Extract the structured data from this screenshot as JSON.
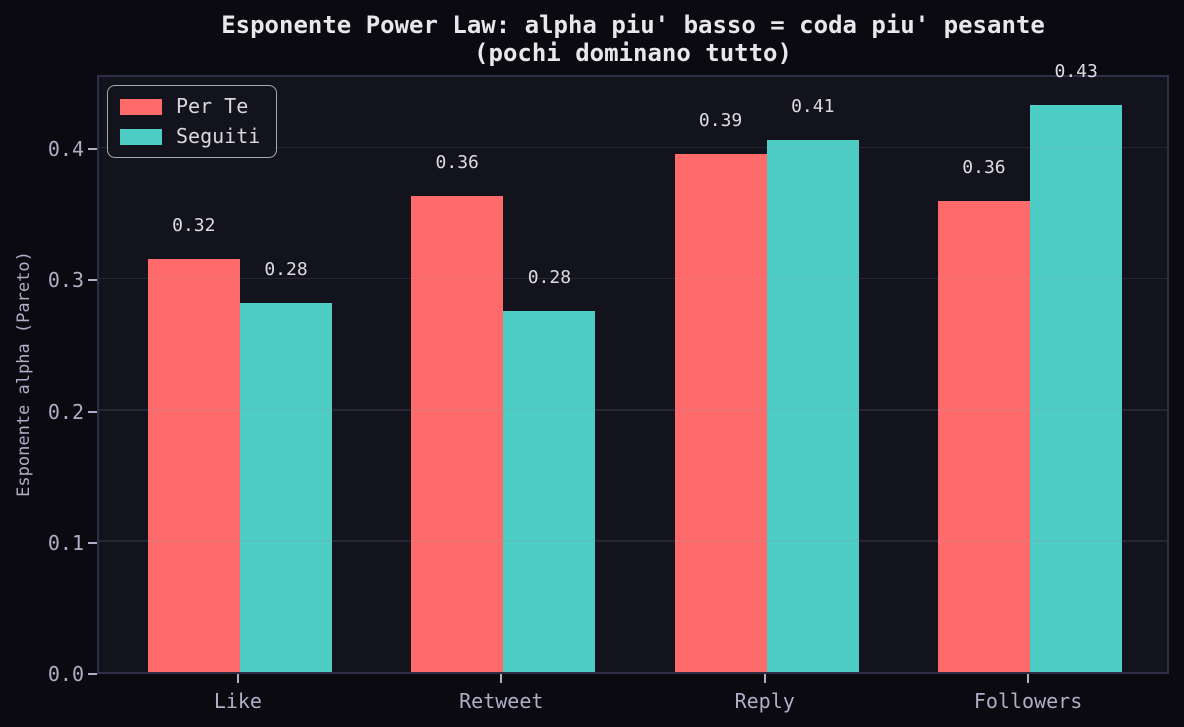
{
  "chart_data": {
    "type": "bar",
    "title_line1": "Esponente Power Law: alpha piu' basso = coda piu' pesante",
    "title_line2": "(pochi dominano tutto)",
    "ylabel": "Esponente alpha (Pareto)",
    "categories": [
      "Like",
      "Retweet",
      "Reply",
      "Followers"
    ],
    "series": [
      {
        "name": "Per Te",
        "color": "#ff6b6b",
        "values": [
          0.315,
          0.363,
          0.395,
          0.359
        ],
        "labels": [
          "0.32",
          "0.36",
          "0.39",
          "0.36"
        ]
      },
      {
        "name": "Seguiti",
        "color": "#4ecdc4",
        "values": [
          0.281,
          0.275,
          0.405,
          0.432
        ],
        "labels": [
          "0.28",
          "0.28",
          "0.41",
          "0.43"
        ]
      }
    ],
    "yticks": [
      0.0,
      0.1,
      0.2,
      0.3,
      0.4
    ],
    "ytick_labels": [
      "0.0",
      "0.1",
      "0.2",
      "0.3",
      "0.4"
    ],
    "ylim": [
      0,
      0.4564
    ],
    "grid": true,
    "legend_position": "upper left",
    "bar_width_fraction": 0.35
  },
  "colors": {
    "figure_bg": "#0a0a10",
    "axes_bg": "#13131d",
    "spine": "#2e2e46",
    "grid": "rgba(150,150,168,0.16)",
    "tick_text": "#aeaec6",
    "title_text": "#e8e8ea",
    "label_text": "#dcdce0",
    "per_te": "#ff6b6b",
    "seguiti": "#4ecdc4"
  }
}
